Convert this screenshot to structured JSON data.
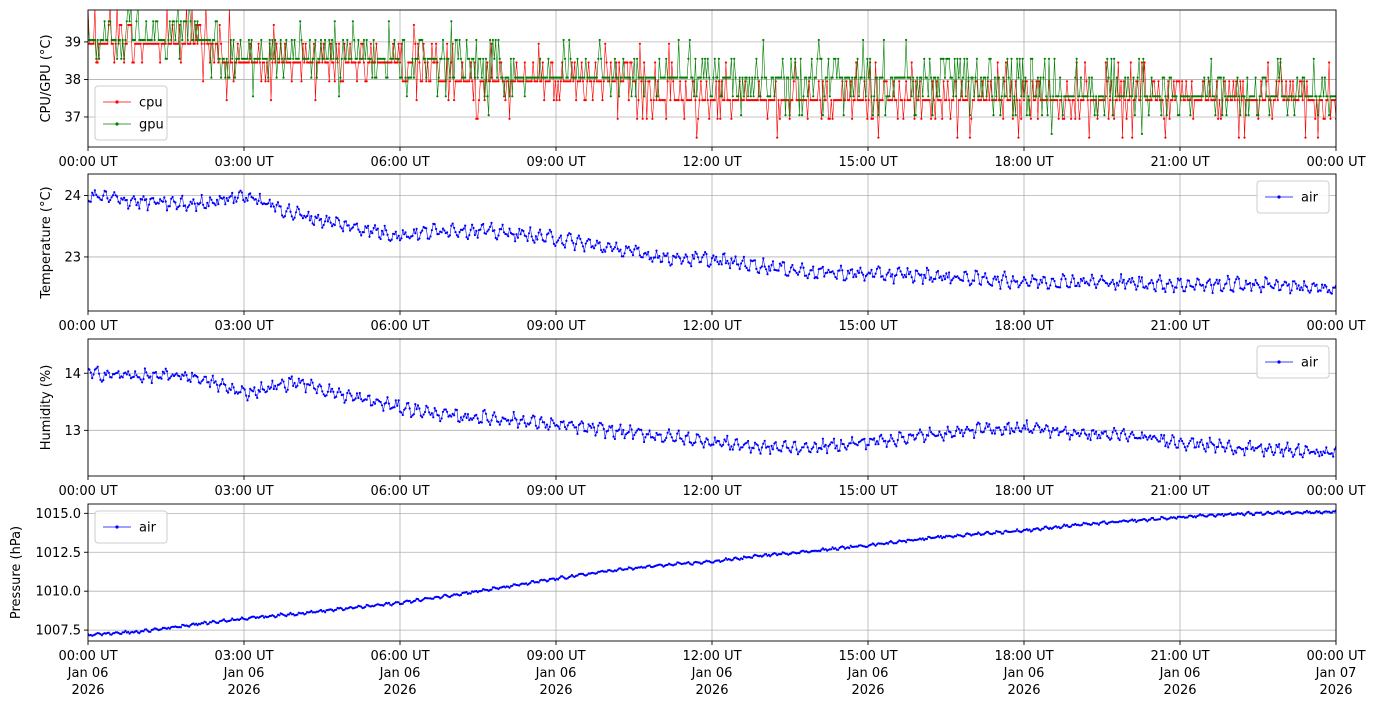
{
  "figure": {
    "background": "#ffffff",
    "series_colors": {
      "cpu": "#ff0000",
      "gpu": "#008000",
      "air": "#0000ff"
    }
  },
  "chart_data": [
    {
      "type": "line",
      "ylabel": "CPU/GPU (°C)",
      "ylim": [
        36.2,
        39.85
      ],
      "yticks": [
        37,
        38,
        39
      ],
      "ytick_labels": [
        "37",
        "38",
        "39"
      ],
      "grid": true,
      "legend": {
        "placement": "lower-left",
        "entries": [
          "cpu",
          "gpu"
        ]
      },
      "x_ticks": [
        "00:00 UT",
        "03:00 UT",
        "06:00 UT",
        "09:00 UT",
        "12:00 UT",
        "15:00 UT",
        "18:00 UT",
        "21:00 UT",
        "00:00 UT"
      ],
      "series": [
        {
          "name": "cpu",
          "color": "#ff0000",
          "x": [
            0,
            1,
            2,
            3,
            4,
            5,
            6,
            7,
            8,
            9,
            10,
            11,
            12,
            13,
            14,
            15,
            16,
            17,
            18,
            19,
            20,
            21,
            22,
            23,
            24
          ],
          "values": [
            39.1,
            39.0,
            38.9,
            38.6,
            38.6,
            38.6,
            38.3,
            38.1,
            37.9,
            38.0,
            37.9,
            37.7,
            37.5,
            37.5,
            37.5,
            37.6,
            37.5,
            37.5,
            37.5,
            37.5,
            37.5,
            37.5,
            37.5,
            37.5,
            37.5
          ]
        },
        {
          "name": "gpu",
          "color": "#008000",
          "x": [
            0,
            1,
            2,
            3,
            4,
            5,
            6,
            7,
            8,
            9,
            10,
            11,
            12,
            13,
            14,
            15,
            16,
            17,
            18,
            19,
            20,
            21,
            22,
            23,
            24
          ],
          "values": [
            38.9,
            38.9,
            38.9,
            38.6,
            38.6,
            38.6,
            38.3,
            38.3,
            38.2,
            38.1,
            37.9,
            37.9,
            37.8,
            37.8,
            37.8,
            37.8,
            37.8,
            37.8,
            37.7,
            37.6,
            37.6,
            37.6,
            37.6,
            37.6,
            37.6
          ]
        }
      ]
    },
    {
      "type": "line",
      "ylabel": "Temperature (°C)",
      "ylim": [
        22.12,
        24.35
      ],
      "yticks": [
        23,
        24
      ],
      "ytick_labels": [
        "23",
        "24"
      ],
      "grid": true,
      "legend": {
        "placement": "upper-right",
        "entries": [
          "air"
        ]
      },
      "x_ticks": [
        "00:00 UT",
        "03:00 UT",
        "06:00 UT",
        "09:00 UT",
        "12:00 UT",
        "15:00 UT",
        "18:00 UT",
        "21:00 UT",
        "00:00 UT"
      ],
      "series": [
        {
          "name": "air",
          "color": "#0000ff",
          "x": [
            0,
            1,
            2,
            3,
            4,
            5,
            6,
            7,
            8,
            9,
            10,
            11,
            12,
            13,
            14,
            15,
            16,
            17,
            18,
            19,
            20,
            21,
            22,
            23,
            24
          ],
          "values": [
            24.0,
            23.9,
            23.85,
            24.0,
            23.7,
            23.5,
            23.35,
            23.45,
            23.4,
            23.3,
            23.15,
            23.0,
            22.95,
            22.85,
            22.75,
            22.72,
            22.7,
            22.65,
            22.6,
            22.6,
            22.58,
            22.55,
            22.55,
            22.55,
            22.45
          ]
        }
      ]
    },
    {
      "type": "line",
      "ylabel": "Humidity (%)",
      "ylim": [
        12.2,
        14.6
      ],
      "yticks": [
        13,
        14
      ],
      "ytick_labels": [
        "13",
        "14"
      ],
      "grid": true,
      "legend": {
        "placement": "upper-right",
        "entries": [
          "air"
        ]
      },
      "x_ticks": [
        "00:00 UT",
        "03:00 UT",
        "06:00 UT",
        "09:00 UT",
        "12:00 UT",
        "15:00 UT",
        "18:00 UT",
        "21:00 UT",
        "00:00 UT"
      ],
      "series": [
        {
          "name": "air",
          "color": "#0000ff",
          "x": [
            0,
            1,
            2,
            3,
            4,
            5,
            6,
            7,
            8,
            9,
            10,
            11,
            12,
            13,
            14,
            15,
            16,
            17,
            18,
            19,
            20,
            21,
            22,
            23,
            24
          ],
          "values": [
            14.0,
            13.95,
            13.95,
            13.65,
            13.85,
            13.6,
            13.4,
            13.25,
            13.2,
            13.1,
            13.0,
            12.9,
            12.8,
            12.7,
            12.7,
            12.8,
            12.9,
            13.0,
            13.05,
            12.95,
            12.9,
            12.8,
            12.7,
            12.65,
            12.6
          ]
        }
      ]
    },
    {
      "type": "line",
      "ylabel": "Pressure (hPa)",
      "ylim": [
        1006.8,
        1015.6
      ],
      "yticks": [
        1007.5,
        1010.0,
        1012.5,
        1015.0
      ],
      "ytick_labels": [
        "1007.5",
        "1010.0",
        "1012.5",
        "1015.0"
      ],
      "grid": true,
      "legend": {
        "placement": "upper-left",
        "entries": [
          "air"
        ]
      },
      "x_ticks": [
        "00:00 UT",
        "03:00 UT",
        "06:00 UT",
        "09:00 UT",
        "12:00 UT",
        "15:00 UT",
        "18:00 UT",
        "21:00 UT",
        "00:00 UT"
      ],
      "x_tick_dates": [
        "Jan 06",
        "Jan 06",
        "Jan 06",
        "Jan 06",
        "Jan 06",
        "Jan 06",
        "Jan 06",
        "Jan 06",
        "Jan 07"
      ],
      "x_tick_years": [
        "2026",
        "2026",
        "2026",
        "2026",
        "2026",
        "2026",
        "2026",
        "2026",
        "2026"
      ],
      "series": [
        {
          "name": "air",
          "color": "#0000ff",
          "x": [
            0,
            1,
            2,
            3,
            4,
            5,
            6,
            7,
            8,
            9,
            10,
            11,
            12,
            13,
            14,
            15,
            16,
            17,
            18,
            19,
            20,
            21,
            22,
            23,
            24
          ],
          "values": [
            1007.2,
            1007.4,
            1007.85,
            1008.25,
            1008.55,
            1008.9,
            1009.25,
            1009.75,
            1010.25,
            1010.8,
            1011.3,
            1011.65,
            1011.9,
            1012.3,
            1012.6,
            1012.95,
            1013.35,
            1013.65,
            1013.9,
            1014.25,
            1014.5,
            1014.75,
            1014.95,
            1015.05,
            1015.1
          ]
        }
      ]
    }
  ]
}
